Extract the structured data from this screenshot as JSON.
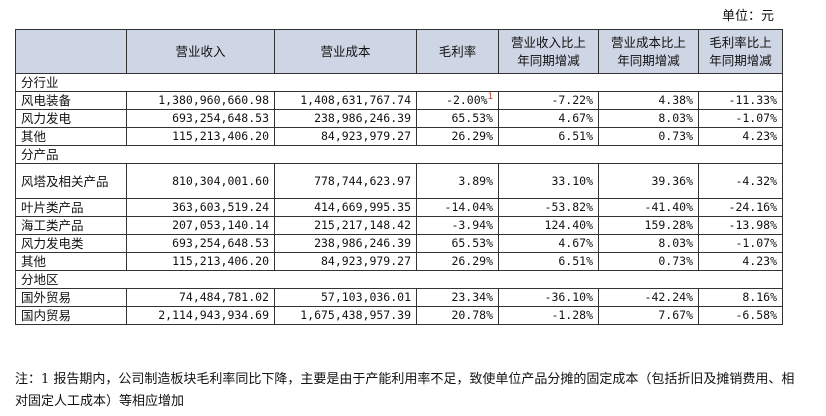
{
  "unit_label": "单位：元",
  "headers": [
    "",
    "营业收入",
    "营业成本",
    "毛利率",
    "营业收入比上年同期增减",
    "营业成本比上年同期增减",
    "毛利率比上年同期增减"
  ],
  "sections": [
    {
      "title": "分行业",
      "rows": [
        {
          "name": "风电装备",
          "revenue": "1,380,960,660.98",
          "cost": "1,408,631,767.74",
          "margin": "-2.00%",
          "margin_note": "1",
          "rev_change": "-7.22%",
          "cost_change": "4.38%",
          "margin_change": "-11.33%"
        },
        {
          "name": "风力发电",
          "revenue": "693,254,648.53",
          "cost": "238,986,246.39",
          "margin": "65.53%",
          "margin_note": "",
          "rev_change": "4.67%",
          "cost_change": "8.03%",
          "margin_change": "-1.07%"
        },
        {
          "name": "其他",
          "revenue": "115,213,406.20",
          "cost": "84,923,979.27",
          "margin": "26.29%",
          "margin_note": "",
          "rev_change": "6.51%",
          "cost_change": "0.73%",
          "margin_change": "4.23%"
        }
      ]
    },
    {
      "title": "分产品",
      "rows": [
        {
          "name": "风塔及相关产品",
          "revenue": "810,304,001.60",
          "cost": "778,744,623.97",
          "margin": "3.89%",
          "margin_note": "",
          "rev_change": "33.10%",
          "cost_change": "39.36%",
          "margin_change": "-4.32%"
        },
        {
          "name": "叶片类产品",
          "revenue": "363,603,519.24",
          "cost": "414,669,995.35",
          "margin": "-14.04%",
          "margin_note": "",
          "rev_change": "-53.82%",
          "cost_change": "-41.40%",
          "margin_change": "-24.16%"
        },
        {
          "name": "海工类产品",
          "revenue": "207,053,140.14",
          "cost": "215,217,148.42",
          "margin": "-3.94%",
          "margin_note": "",
          "rev_change": "124.40%",
          "cost_change": "159.28%",
          "margin_change": "-13.98%"
        },
        {
          "name": "风力发电类",
          "revenue": "693,254,648.53",
          "cost": "238,986,246.39",
          "margin": "65.53%",
          "margin_note": "",
          "rev_change": "4.67%",
          "cost_change": "8.03%",
          "margin_change": "-1.07%"
        },
        {
          "name": "其他",
          "revenue": "115,213,406.20",
          "cost": "84,923,979.27",
          "margin": "26.29%",
          "margin_note": "",
          "rev_change": "6.51%",
          "cost_change": "0.73%",
          "margin_change": "4.23%"
        }
      ]
    },
    {
      "title": "分地区",
      "rows": [
        {
          "name": "国外贸易",
          "revenue": "74,484,781.02",
          "cost": "57,103,036.01",
          "margin": "23.34%",
          "margin_note": "",
          "rev_change": "-36.10%",
          "cost_change": "-42.24%",
          "margin_change": "8.16%"
        },
        {
          "name": "国内贸易",
          "revenue": "2,114,943,934.69",
          "cost": "1,675,438,957.39",
          "margin": "20.78%",
          "margin_note": "",
          "rev_change": "-1.28%",
          "cost_change": "7.67%",
          "margin_change": "-6.58%"
        }
      ]
    }
  ],
  "footnote": "注：1 报告期内，公司制造板块毛利率同比下降，主要是由于产能利用率不足，致使单位产品分摊的固定成本（包括折旧及摊销费用、相对固定人工成本）等相应增加"
}
